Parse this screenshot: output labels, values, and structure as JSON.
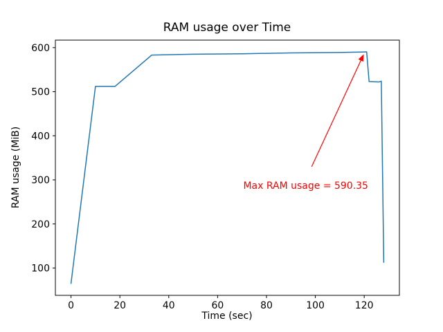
{
  "chart_data": {
    "type": "line",
    "title": "RAM usage over Time",
    "xlabel": "Time (sec)",
    "ylabel": "RAM usage (MiB)",
    "xlim": [
      -6.4,
      134.4
    ],
    "ylim": [
      38,
      617
    ],
    "xticks": [
      0,
      20,
      40,
      60,
      80,
      100,
      120
    ],
    "yticks": [
      100,
      200,
      300,
      400,
      500,
      600
    ],
    "grid": false,
    "legend": "none",
    "line_color": "#1f77b4",
    "series": [
      {
        "name": "RAM usage",
        "points": [
          [
            0,
            65
          ],
          [
            10,
            512
          ],
          [
            18,
            512
          ],
          [
            33,
            583
          ],
          [
            50,
            585
          ],
          [
            70,
            586
          ],
          [
            90,
            588
          ],
          [
            110,
            589
          ],
          [
            119,
            590
          ],
          [
            121,
            590.35
          ],
          [
            122,
            523
          ],
          [
            126,
            522
          ],
          [
            127,
            524
          ],
          [
            128,
            113
          ]
        ]
      }
    ],
    "max_value": 590.35,
    "annotation": {
      "text": "Max RAM usage = 590.35",
      "color": "#ff0000",
      "text_xy": [
        70.5,
        280
      ],
      "arrow_from": [
        98.5,
        330
      ],
      "arrow_to": [
        119.8,
        585
      ]
    }
  }
}
